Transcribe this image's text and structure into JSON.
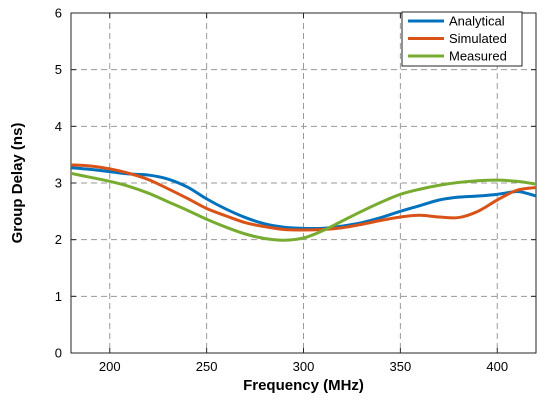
{
  "chart_data": {
    "type": "line",
    "title": "",
    "xlabel": "Frequency (MHz)",
    "ylabel": "Group Delay (ns)",
    "xlim": [
      180,
      420
    ],
    "ylim": [
      0,
      6
    ],
    "x_ticks": [
      200,
      250,
      300,
      350,
      400
    ],
    "y_ticks": [
      0,
      1,
      2,
      3,
      4,
      5,
      6
    ],
    "x_tick_labels": [
      "200",
      "250",
      "300",
      "350",
      "400"
    ],
    "y_tick_labels": [
      "0",
      "1",
      "2",
      "3",
      "4",
      "5",
      "6"
    ],
    "grid": true,
    "grid_style": "dashed",
    "legend_position": "top-right",
    "series": [
      {
        "name": "Analytical",
        "color": "#0072BD",
        "x": [
          180,
          190,
          200,
          210,
          220,
          230,
          240,
          250,
          260,
          270,
          280,
          290,
          300,
          310,
          320,
          330,
          340,
          350,
          360,
          370,
          380,
          390,
          400,
          410,
          415,
          420
        ],
        "y": [
          3.27,
          3.24,
          3.2,
          3.16,
          3.14,
          3.07,
          2.93,
          2.72,
          2.54,
          2.39,
          2.28,
          2.22,
          2.2,
          2.2,
          2.24,
          2.3,
          2.39,
          2.5,
          2.6,
          2.7,
          2.75,
          2.77,
          2.8,
          2.85,
          2.82,
          2.77
        ]
      },
      {
        "name": "Simulated",
        "color": "#D95319",
        "x": [
          180,
          190,
          200,
          210,
          220,
          230,
          240,
          250,
          260,
          270,
          280,
          290,
          300,
          310,
          320,
          330,
          340,
          350,
          360,
          370,
          380,
          390,
          400,
          410,
          420
        ],
        "y": [
          3.32,
          3.3,
          3.25,
          3.17,
          3.06,
          2.9,
          2.73,
          2.55,
          2.42,
          2.3,
          2.23,
          2.18,
          2.17,
          2.18,
          2.21,
          2.27,
          2.34,
          2.4,
          2.43,
          2.4,
          2.39,
          2.5,
          2.7,
          2.87,
          2.92
        ]
      },
      {
        "name": "Measured",
        "color": "#77AC30",
        "x": [
          180,
          190,
          200,
          210,
          220,
          230,
          240,
          250,
          260,
          270,
          280,
          290,
          300,
          310,
          320,
          330,
          340,
          350,
          360,
          370,
          380,
          390,
          400,
          410,
          420
        ],
        "y": [
          3.17,
          3.1,
          3.03,
          2.94,
          2.82,
          2.67,
          2.52,
          2.36,
          2.22,
          2.1,
          2.02,
          1.99,
          2.03,
          2.16,
          2.33,
          2.5,
          2.66,
          2.8,
          2.89,
          2.96,
          3.01,
          3.04,
          3.05,
          3.03,
          2.98
        ]
      }
    ]
  }
}
